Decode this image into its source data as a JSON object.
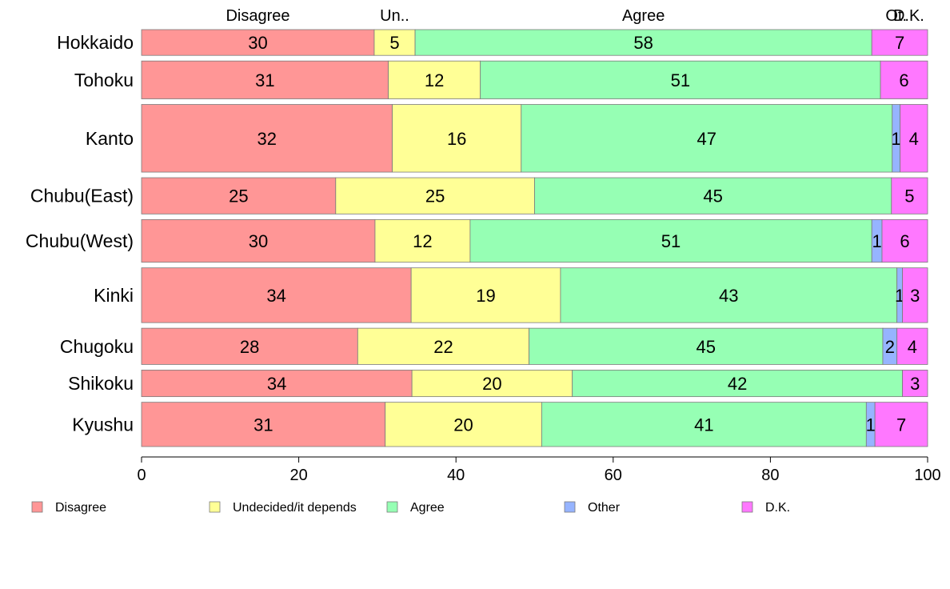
{
  "chart_data": {
    "type": "bar",
    "orientation": "horizontal",
    "stacked": true,
    "normalized_percent": true,
    "categories": [
      "Hokkaido",
      "Tohoku",
      "Kanto",
      "Chubu(East)",
      "Chubu(West)",
      "Kinki",
      "Chugoku",
      "Shikoku",
      "Kyushu"
    ],
    "category_weights": [
      32,
      47,
      84,
      45,
      53,
      68,
      45,
      33,
      55
    ],
    "top_labels": [
      "Disagree",
      "Un..",
      "Agree",
      "Ot.",
      "D.K."
    ],
    "series": [
      {
        "name": "Disagree",
        "color": "#ff9696",
        "values": [
          29.6,
          31.4,
          31.9,
          24.7,
          29.7,
          34.3,
          27.5,
          34.4,
          31.0
        ],
        "labels": [
          "30",
          "31",
          "32",
          "25",
          "30",
          "34",
          "28",
          "34",
          "31"
        ]
      },
      {
        "name": "Undecided/it depends",
        "color": "#ffff96",
        "values": [
          5.2,
          11.7,
          16.4,
          25.3,
          12.1,
          19.0,
          21.8,
          20.4,
          19.9
        ],
        "labels": [
          "5",
          "12",
          "16",
          "25",
          "12",
          "19",
          "22",
          "20",
          "20"
        ]
      },
      {
        "name": "Agree",
        "color": "#96ffb4",
        "values": [
          58.1,
          50.9,
          47.2,
          45.4,
          51.1,
          42.8,
          45.0,
          42.0,
          41.3
        ],
        "labels": [
          "58",
          "51",
          "47",
          "45",
          "51",
          "43",
          "45",
          "42",
          "41"
        ]
      },
      {
        "name": "Other",
        "color": "#96b4ff",
        "values": [
          0.0,
          0.0,
          1.0,
          0.0,
          1.3,
          0.7,
          1.8,
          0.0,
          1.1
        ],
        "labels": [
          "",
          "",
          "1",
          "",
          "1",
          "1",
          "2",
          "",
          "1"
        ]
      },
      {
        "name": "D.K.",
        "color": "#ff78ff",
        "values": [
          7.1,
          6.0,
          3.5,
          4.6,
          5.8,
          3.2,
          3.9,
          3.2,
          6.7
        ],
        "labels": [
          "7",
          "6",
          "4",
          "5",
          "6",
          "3",
          "4",
          "3",
          "7"
        ]
      }
    ],
    "x_ticks": [
      0,
      20,
      40,
      60,
      80,
      100
    ],
    "xlim": [
      0,
      100
    ],
    "grid": false,
    "legend_position": "bottom"
  }
}
